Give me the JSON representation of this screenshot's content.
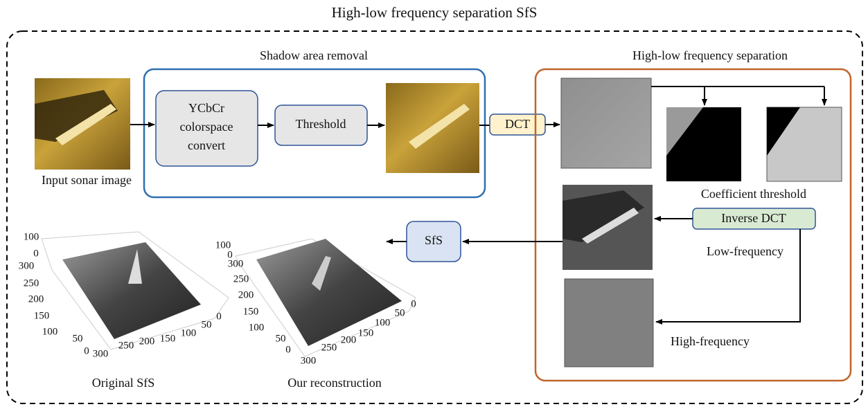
{
  "title": "High-low frequency separation SfS",
  "input_image": {
    "label": "Input sonar image"
  },
  "shadow_removal": {
    "title": "Shadow area removal",
    "colorspace_node": {
      "lines": [
        "YCbCr",
        "colorspace",
        "convert"
      ]
    },
    "threshold_node": {
      "label": "Threshold"
    }
  },
  "dct_node": {
    "label": "DCT"
  },
  "frequency_separation": {
    "title": "High-low frequency separation",
    "coefficient_label": "Coefficient threshold",
    "inverse_dct_node": {
      "label": "Inverse DCT"
    },
    "low_label": "Low-frequency",
    "high_label": "High-frequency"
  },
  "sfs_node": {
    "label": "SfS"
  },
  "plots": [
    {
      "label": "Original SfS",
      "z_ticks": [
        100,
        0
      ],
      "y_ticks": [
        300,
        250,
        200,
        150,
        100,
        50,
        0
      ],
      "x_ticks": [
        300,
        250,
        200,
        150,
        100,
        50,
        0
      ]
    },
    {
      "label": "Our reconstruction",
      "z_ticks": [
        100,
        0
      ],
      "y_ticks": [
        300,
        250,
        200,
        150,
        100,
        50,
        0
      ],
      "x_ticks": [
        300,
        250,
        200,
        150,
        100,
        50,
        0
      ]
    }
  ]
}
